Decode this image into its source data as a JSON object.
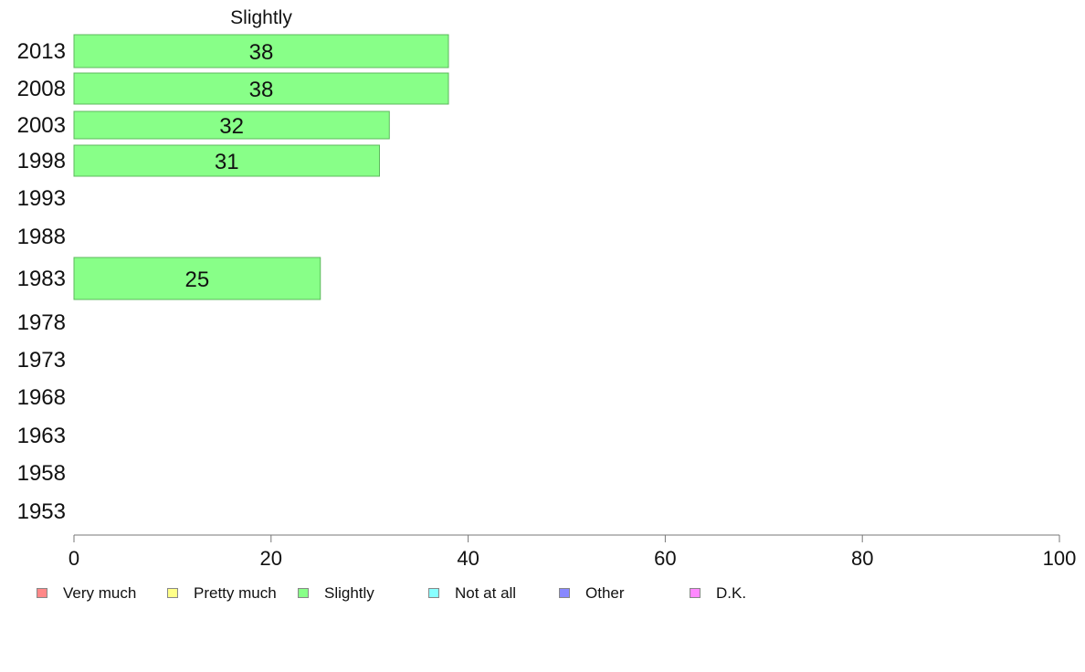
{
  "chart_data": {
    "type": "bar",
    "orientation": "horizontal",
    "title": "Slightly",
    "categories": [
      "2013",
      "2008",
      "2003",
      "1998",
      "1993",
      "1988",
      "1983",
      "1978",
      "1973",
      "1968",
      "1963",
      "1958",
      "1953"
    ],
    "series": [
      {
        "name": "Slightly",
        "color": "#88ff88",
        "values": [
          38,
          38,
          32,
          31,
          null,
          null,
          25,
          null,
          null,
          null,
          null,
          null,
          null
        ],
        "labels": [
          "38",
          "38",
          "32",
          "31",
          "",
          "",
          "25",
          "",
          "",
          "",
          "",
          "",
          ""
        ]
      }
    ],
    "xlim": [
      0,
      100
    ],
    "xticks": [
      0,
      20,
      40,
      60,
      80,
      100
    ],
    "xtick_labels": [
      "0",
      "20",
      "40",
      "60",
      "80",
      "100"
    ],
    "xlabel": "",
    "ylabel": "",
    "grid": false,
    "legend_position": "bottom"
  },
  "legend": [
    {
      "label": "Very much",
      "color": "#ff8888"
    },
    {
      "label": "Pretty much",
      "color": "#ffff88"
    },
    {
      "label": "Slightly",
      "color": "#88ff88"
    },
    {
      "label": "Not at all",
      "color": "#88ffff"
    },
    {
      "label": "Other",
      "color": "#8888ff"
    },
    {
      "label": "D.K.",
      "color": "#ff88ff"
    }
  ]
}
